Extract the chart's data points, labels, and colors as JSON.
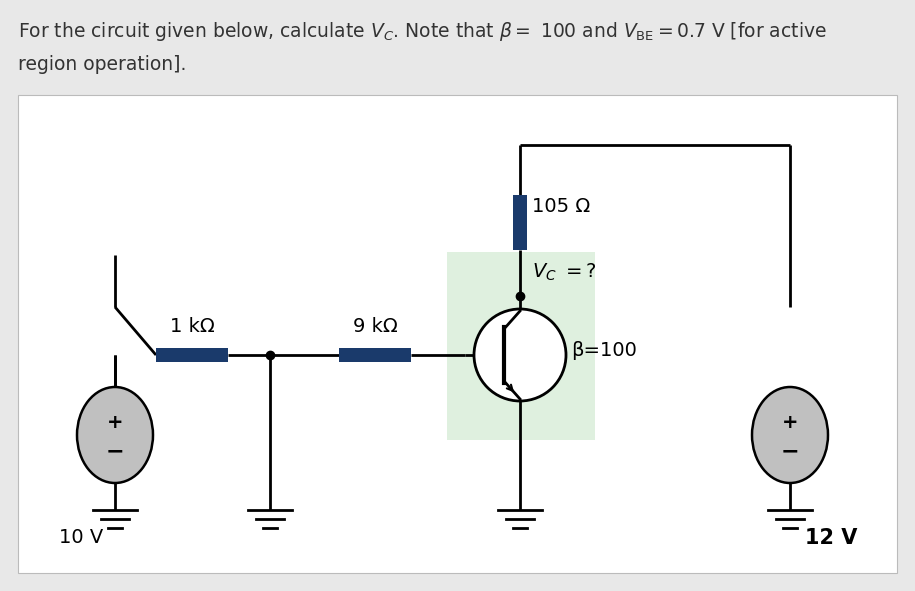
{
  "bg_color": "#e8e8e8",
  "panel_bg": "#ffffff",
  "wire_color": "#000000",
  "resistor_color": "#1a3a6b",
  "source_fill": "#c0c0c0",
  "transistor_bg": "#dff0df",
  "text_color": "#000000",
  "label_1kohm": "1 kΩ",
  "label_9kohm": "9 kΩ",
  "label_105ohm": "105 Ω",
  "label_vc": "$V_C\\ =?$",
  "label_beta": "β=100",
  "label_10v": "10 V",
  "label_12v": "12 V",
  "header_line1": "For the circuit given below, calculate $V_C$. Note that $\\beta = $ 100 and $V_{\\mathrm{BE}} = 0.7$ V [for active",
  "header_line2": "region operation]."
}
